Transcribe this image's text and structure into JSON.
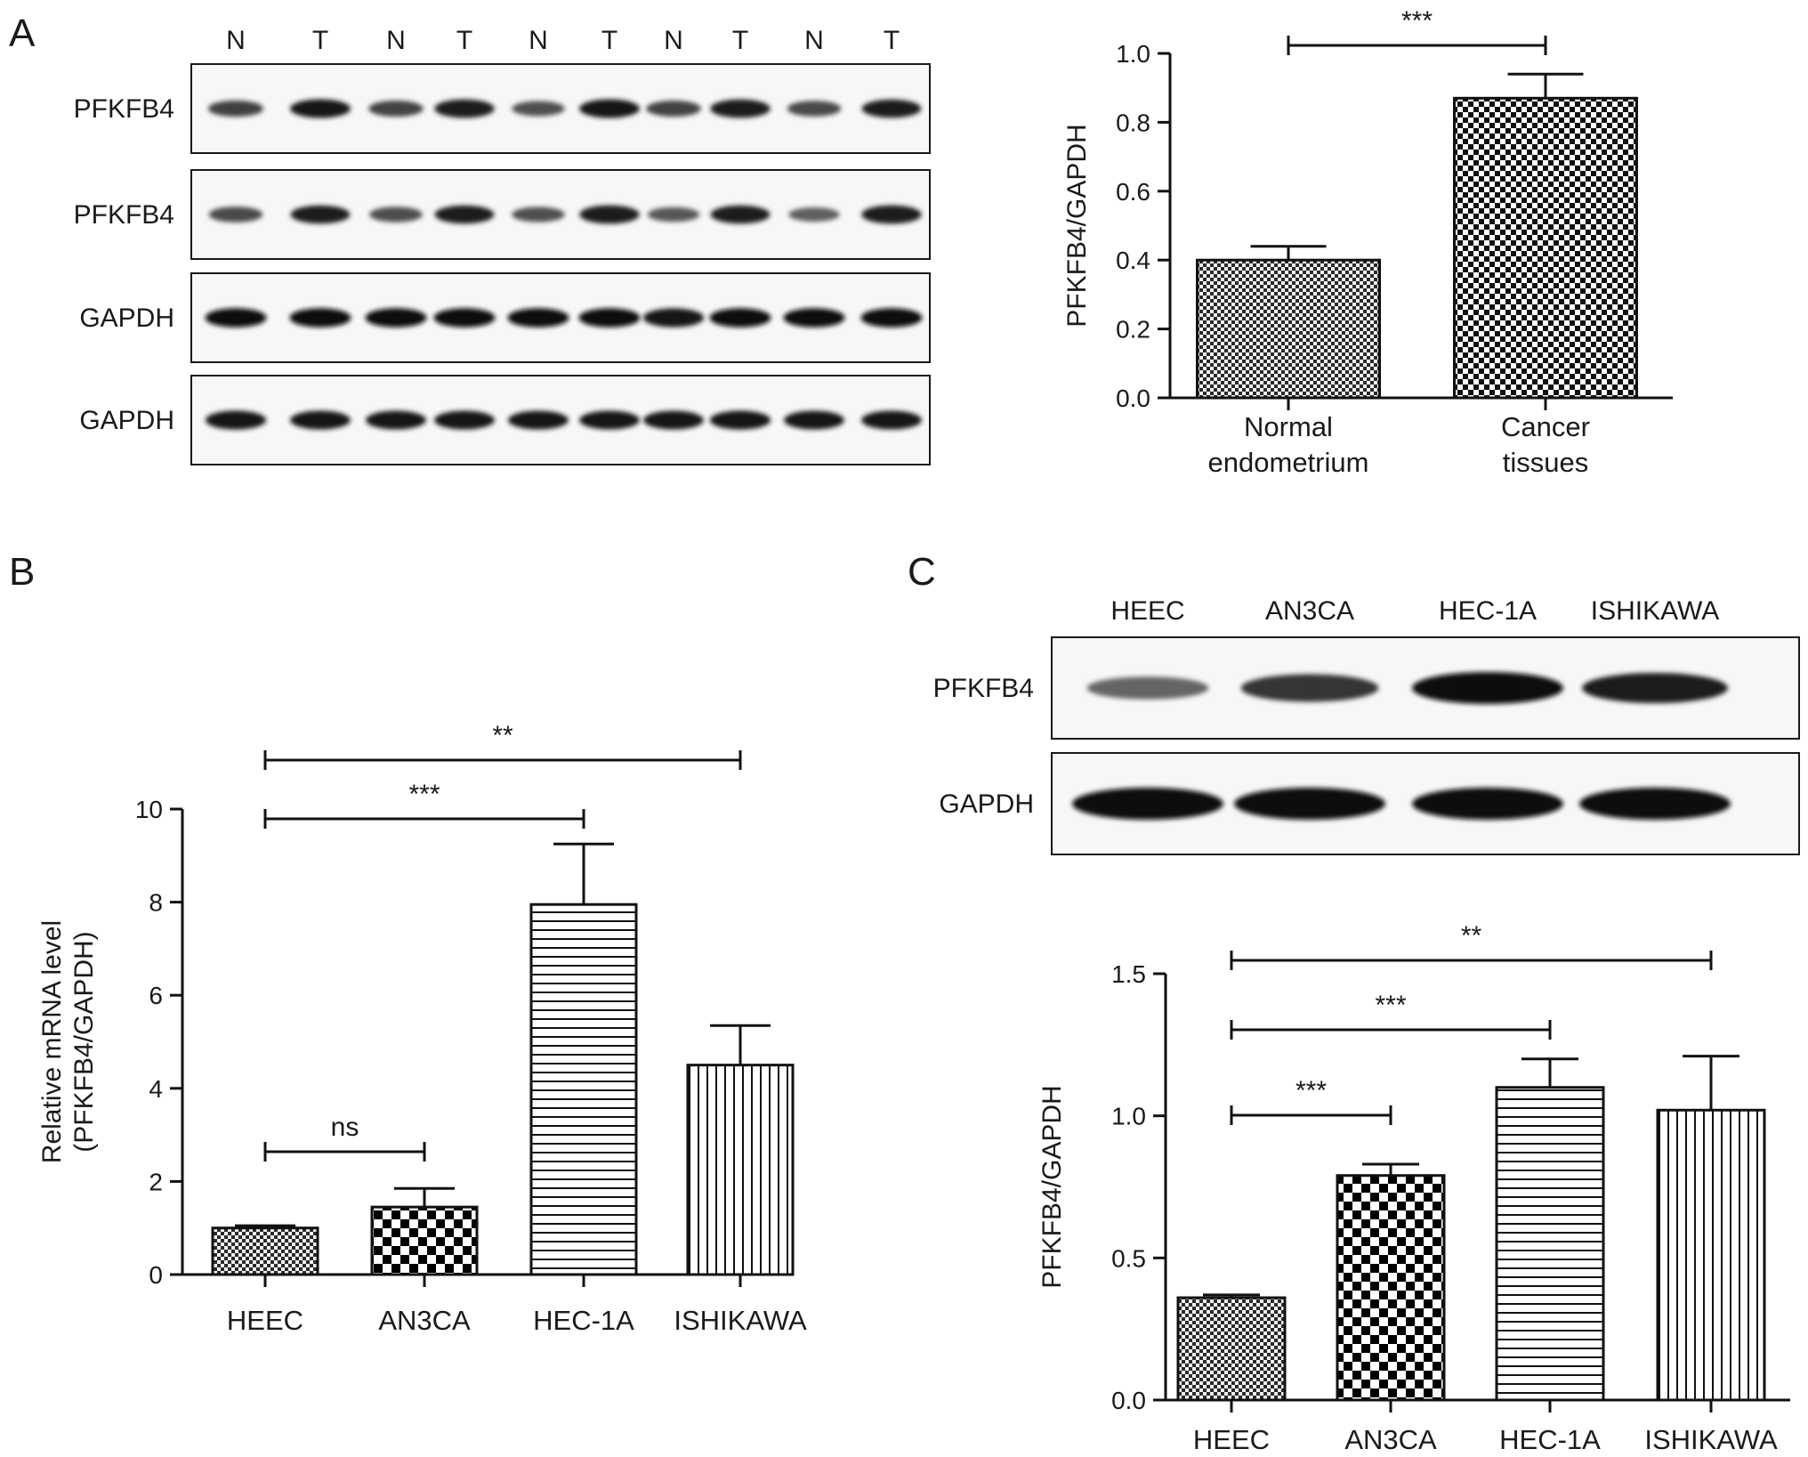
{
  "panels": {
    "a": "A",
    "b": "B",
    "c": "C"
  },
  "blot_a": {
    "lanes": [
      "N",
      "T",
      "N",
      "T",
      "N",
      "T",
      "N",
      "T",
      "N",
      "T"
    ],
    "rows": [
      "PFKFB4",
      "PFKFB4",
      "GAPDH",
      "GAPDH"
    ],
    "intensity": [
      [
        0.62,
        0.9,
        0.6,
        0.88,
        0.5,
        0.9,
        0.6,
        0.88,
        0.55,
        0.85
      ],
      [
        0.55,
        0.85,
        0.52,
        0.85,
        0.5,
        0.88,
        0.45,
        0.85,
        0.4,
        0.88
      ],
      [
        0.95,
        0.95,
        0.95,
        0.95,
        0.95,
        0.95,
        0.92,
        0.95,
        0.95,
        0.95
      ],
      [
        0.92,
        0.9,
        0.9,
        0.9,
        0.9,
        0.9,
        0.9,
        0.92,
        0.9,
        0.9
      ]
    ]
  },
  "blot_c": {
    "lanes": [
      "HEEC",
      "AN3CA",
      "HEC-1A",
      "ISHIKAWA"
    ],
    "rows": [
      "PFKFB4",
      "GAPDH"
    ],
    "intensity": [
      [
        0.35,
        0.7,
        1.0,
        0.88
      ],
      [
        1.0,
        1.0,
        1.0,
        1.0
      ]
    ]
  },
  "chart_data": [
    {
      "type": "bar",
      "categories": [
        "Normal endometrium",
        "Cancer tissues"
      ],
      "category_lines": [
        [
          "Normal",
          "endometrium"
        ],
        [
          "Cancer",
          "tissues"
        ]
      ],
      "values": [
        0.4,
        0.87
      ],
      "errors": [
        0.04,
        0.07
      ],
      "patterns": [
        "fine-check",
        "coarse-check"
      ],
      "ylabel": "PFKFB4/GAPDH",
      "ylim": [
        0,
        1.0
      ],
      "yticks": [
        "0.0",
        "0.2",
        "0.4",
        "0.6",
        "0.8",
        "1.0"
      ],
      "significance": [
        {
          "from": 0,
          "to": 1,
          "label": "***"
        }
      ]
    },
    {
      "type": "bar",
      "categories": [
        "HEEC",
        "AN3CA",
        "HEC-1A",
        "ISHIKAWA"
      ],
      "values": [
        1.0,
        1.45,
        7.95,
        4.5
      ],
      "errors": [
        0.05,
        0.4,
        1.3,
        0.85
      ],
      "patterns": [
        "fine-check",
        "big-check",
        "horizontal-lines",
        "vertical-lines"
      ],
      "ylabel_lines": [
        "Relative mRNA level",
        "(PFKFB4/GAPDH)"
      ],
      "ylim": [
        0,
        10
      ],
      "yticks": [
        "0",
        "2",
        "4",
        "6",
        "8",
        "10"
      ],
      "significance": [
        {
          "from": 0,
          "to": 1,
          "label": "ns"
        },
        {
          "from": 0,
          "to": 2,
          "label": "***"
        },
        {
          "from": 0,
          "to": 3,
          "label": "**"
        }
      ]
    },
    {
      "type": "bar",
      "categories": [
        "HEEC",
        "AN3CA",
        "HEC-1A",
        "ISHIKAWA"
      ],
      "values": [
        0.36,
        0.79,
        1.1,
        1.02
      ],
      "errors": [
        0.01,
        0.04,
        0.1,
        0.19
      ],
      "patterns": [
        "fine-check",
        "big-check",
        "horizontal-lines",
        "vertical-lines"
      ],
      "ylabel": "PFKFB4/GAPDH",
      "ylim": [
        0,
        1.5
      ],
      "yticks": [
        "0.0",
        "0.5",
        "1.0",
        "1.5"
      ],
      "significance": [
        {
          "from": 0,
          "to": 1,
          "label": "***"
        },
        {
          "from": 0,
          "to": 2,
          "label": "***"
        },
        {
          "from": 0,
          "to": 3,
          "label": "**"
        }
      ]
    }
  ]
}
